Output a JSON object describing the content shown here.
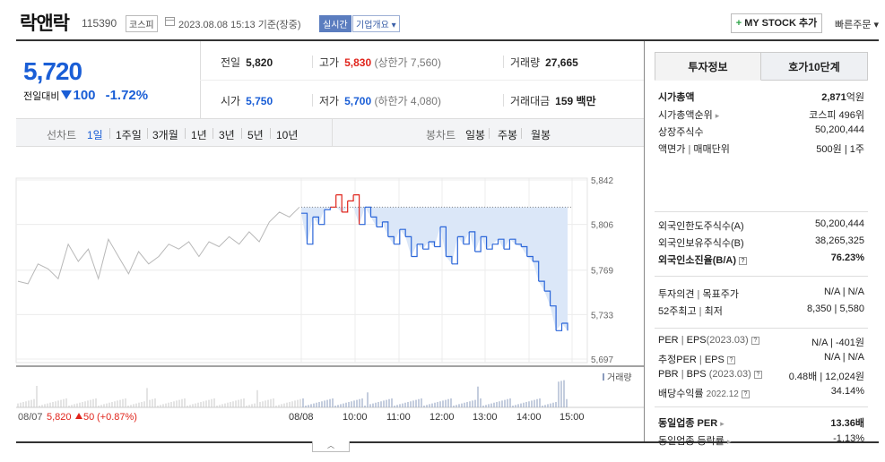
{
  "header": {
    "stock_name": "락앤락",
    "stock_code": "115390",
    "market_badge": "코스피",
    "datetime": "2023.08.08 15:13 기준(장중)",
    "realtime_badge": "실시간",
    "overview_dropdown": "기업개요",
    "mystock_label": "MY STOCK 추가",
    "quick_order_label": "빠른주문"
  },
  "summary": {
    "current_price": "5,720",
    "change_label": "전일대비",
    "change_value": "100",
    "change_pct": "-1.72%",
    "prev_close_label": "전일",
    "prev_close": "5,820",
    "high_label": "고가",
    "high": "5,830",
    "upper_limit": "(상한가 7,560)",
    "volume_label": "거래량",
    "volume": "27,665",
    "open_label": "시가",
    "open": "5,750",
    "low_label": "저가",
    "low": "5,700",
    "lower_limit": "(하한가 4,080)",
    "value_label": "거래대금",
    "value": "159 백만"
  },
  "chart_tabs": {
    "line_label": "선차트",
    "line_items": [
      "1일",
      "1주일",
      "3개월",
      "1년",
      "3년",
      "5년",
      "10년"
    ],
    "active_line": "1일",
    "candle_label": "봉차트",
    "candle_items": [
      "일봉",
      "주봉",
      "월봉"
    ]
  },
  "chart_data": {
    "type": "line",
    "y_ticks": [
      "5,842",
      "5,806",
      "5,769",
      "5,733",
      "5,697"
    ],
    "ylim": [
      5697,
      5842
    ],
    "x_ticks": [
      "08/08",
      "10:00",
      "11:00",
      "12:00",
      "13:00",
      "14:00",
      "15:00"
    ],
    "prev_close": 5820,
    "volume_label": "거래량",
    "prev_day_caption": "08/07",
    "prev_day_price": "5,820",
    "prev_day_change": "50",
    "prev_day_pct": "(+0.87%)",
    "colors": {
      "prev_day": "#b8b8b8",
      "today": "#2b66d9",
      "above": "#e0241b",
      "fill": "#dbe7f8"
    },
    "prev_day_series": [
      5760,
      5758,
      5774,
      5770,
      5762,
      5790,
      5776,
      5786,
      5762,
      5794,
      5780,
      5766,
      5784,
      5774,
      5780,
      5790,
      5786,
      5792,
      5780,
      5792,
      5788,
      5796,
      5790,
      5800,
      5792,
      5808,
      5816,
      5812,
      5820
    ],
    "today_series": [
      5815,
      5790,
      5812,
      5806,
      5818,
      5820,
      5830,
      5816,
      5825,
      5830,
      5806,
      5820,
      5812,
      5804,
      5808,
      5796,
      5790,
      5802,
      5796,
      5780,
      5790,
      5786,
      5792,
      5788,
      5804,
      5780,
      5774,
      5796,
      5790,
      5800,
      5784,
      5796,
      5786,
      5790,
      5794,
      5786,
      5794,
      5790,
      5788,
      5780,
      5776,
      5760,
      5752,
      5740,
      5720,
      5726,
      5720
    ]
  },
  "invest_info": {
    "tab_active": "투자정보",
    "tab_other": "호가10단계",
    "market_cap_label": "시가총액",
    "market_cap": "2,871",
    "market_cap_unit": "억원",
    "market_cap_rank_label": "시가총액순위",
    "market_cap_rank": "코스피 496위",
    "shares_label": "상장주식수",
    "shares": "50,200,444",
    "par_label": "액면가",
    "par_sep": "매매단위",
    "par": "500원",
    "trade_unit": "1주",
    "foreign_limit_label": "외국인한도주식수(A)",
    "foreign_limit": "50,200,444",
    "foreign_hold_label": "외국인보유주식수(B)",
    "foreign_hold": "38,265,325",
    "foreign_rate_label": "외국인소진율(B/A)",
    "foreign_rate": "76.23%",
    "opinion_label": "투자의견",
    "target_label": "목표주가",
    "opinion": "N/A",
    "target": "N/A",
    "week52_label": "52주최고",
    "week52_low_label": "최저",
    "week52_high": "8,350",
    "week52_low": "5,580",
    "per_label": "PER",
    "eps_label": "EPS",
    "period": "(2023.03)",
    "per": "N/A",
    "eps": "-401원",
    "est_per_label": "추정PER",
    "est_eps_label": "EPS",
    "est_per": "N/A",
    "est_eps": "N/A",
    "pbr_label": "PBR",
    "bps_label": "BPS",
    "pbr": "0.48배",
    "bps": "12,024원",
    "div_label": "배당수익률",
    "div_period": "2022.12",
    "div": "34.14%",
    "sector_per_label": "동일업종 PER",
    "sector_per": "13.36배",
    "sector_rate_label": "동일업종 등락률",
    "sector_rate": "-1.13%"
  }
}
